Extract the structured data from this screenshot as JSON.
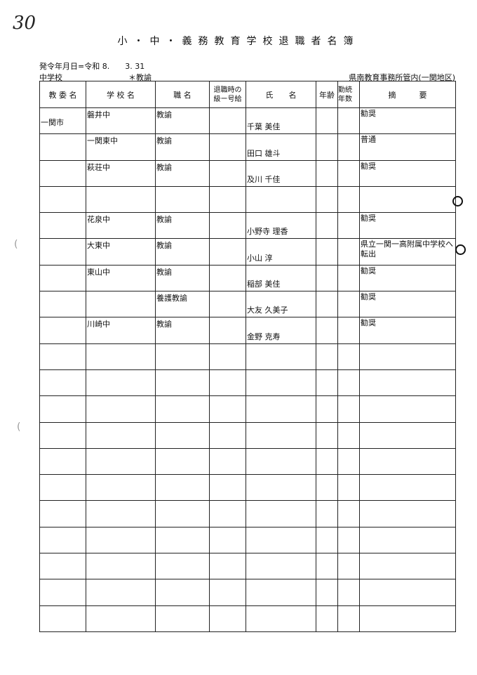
{
  "page_number_handwritten": "30",
  "title": "小・中・義務教育学校退職者名簿",
  "issue_date": "発令年月日=令和 8.　　3. 31",
  "school_type": "中学校",
  "position_note": "＊教諭",
  "region": "県南教育事務所管内(一関地区)",
  "columns": [
    "教 委 名",
    "学 校 名",
    "職 名",
    "退職時の\n級ー号給",
    "氏　　名",
    "年齢",
    "勤続\n年数",
    "摘　　　要"
  ],
  "rows": [
    {
      "board": "一関市",
      "school": "磐井中",
      "position": "教諭",
      "grade": "",
      "name": "千葉 美佳",
      "age": "",
      "years": "",
      "remarks": "勧奨"
    },
    {
      "board": "",
      "school": "一関東中",
      "position": "教諭",
      "grade": "",
      "name": "田口 雄斗",
      "age": "",
      "years": "",
      "remarks": "普通"
    },
    {
      "board": "",
      "school": "萩荘中",
      "position": "教諭",
      "grade": "",
      "name": "及川 千佳",
      "age": "",
      "years": "",
      "remarks": "勧奨"
    },
    {
      "board": "",
      "school": "",
      "position": "",
      "grade": "",
      "name": "",
      "age": "",
      "years": "",
      "remarks": ""
    },
    {
      "board": "",
      "school": "花泉中",
      "position": "教諭",
      "grade": "",
      "name": "小野寺 理香",
      "age": "",
      "years": "",
      "remarks": "勧奨"
    },
    {
      "board": "",
      "school": "大東中",
      "position": "教諭",
      "grade": "",
      "name": "小山 淳",
      "age": "",
      "years": "",
      "remarks": "県立一関一高附属中学校へ転出"
    },
    {
      "board": "",
      "school": "東山中",
      "position": "教諭",
      "grade": "",
      "name": "稲部 美佳",
      "age": "",
      "years": "",
      "remarks": "勧奨"
    },
    {
      "board": "",
      "school": "",
      "position": "養護教諭",
      "grade": "",
      "name": "大友 久美子",
      "age": "",
      "years": "",
      "remarks": "勧奨"
    },
    {
      "board": "",
      "school": "川崎中",
      "position": "教諭",
      "grade": "",
      "name": "金野 克寿",
      "age": "",
      "years": "",
      "remarks": "勧奨"
    }
  ],
  "empty_row_count": 11
}
